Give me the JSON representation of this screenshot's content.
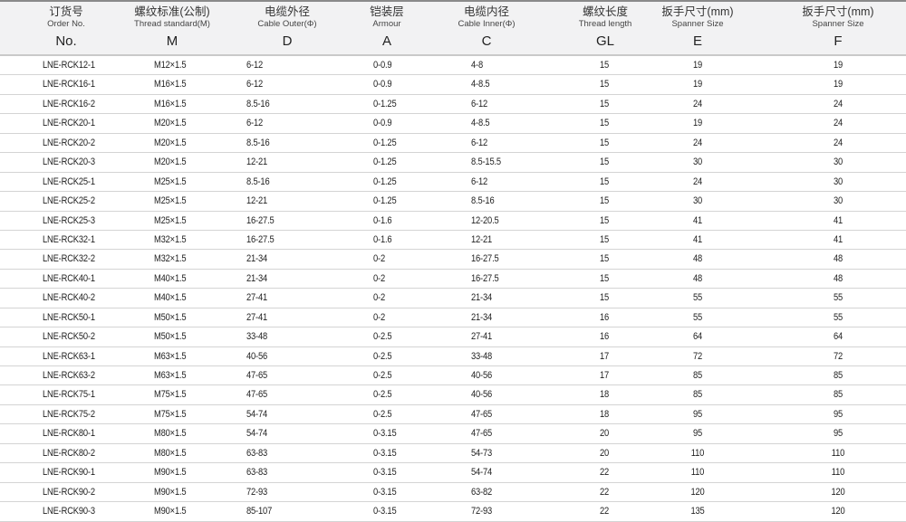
{
  "headers": [
    {
      "cn": "订货号",
      "en": "Order No.",
      "sym": "No."
    },
    {
      "cn": "螺纹标准(公制)",
      "en": "Thread standard(M)",
      "sym": "M"
    },
    {
      "cn": "电缆外径",
      "en": "Cable Outer(Φ)",
      "sym": "D"
    },
    {
      "cn": "铠装层",
      "en": "Armour",
      "sym": "A"
    },
    {
      "cn": "电缆内径",
      "en": "Cable Inner(Φ)",
      "sym": "C"
    },
    {
      "cn": "螺纹长度",
      "en": "Thread length",
      "sym": "GL"
    },
    {
      "cn": "扳手尺寸(mm)",
      "en": "Spanner Size",
      "sym": "E"
    },
    {
      "cn": "扳手尺寸(mm)",
      "en": "Spanner Size",
      "sym": "F"
    }
  ],
  "rows": [
    [
      "LNE-RCK12-1",
      "M12×1.5",
      "6-12",
      "0-0.9",
      "4-8",
      "15",
      "19",
      "19"
    ],
    [
      "LNE-RCK16-1",
      "M16×1.5",
      "6-12",
      "0-0.9",
      "4-8.5",
      "15",
      "19",
      "19"
    ],
    [
      "LNE-RCK16-2",
      "M16×1.5",
      "8.5-16",
      "0-1.25",
      "6-12",
      "15",
      "24",
      "24"
    ],
    [
      "LNE-RCK20-1",
      "M20×1.5",
      "6-12",
      "0-0.9",
      "4-8.5",
      "15",
      "19",
      "24"
    ],
    [
      "LNE-RCK20-2",
      "M20×1.5",
      "8.5-16",
      "0-1.25",
      "6-12",
      "15",
      "24",
      "24"
    ],
    [
      "LNE-RCK20-3",
      "M20×1.5",
      "12-21",
      "0-1.25",
      "8.5-15.5",
      "15",
      "30",
      "30"
    ],
    [
      "LNE-RCK25-1",
      "M25×1.5",
      "8.5-16",
      "0-1.25",
      "6-12",
      "15",
      "24",
      "30"
    ],
    [
      "LNE-RCK25-2",
      "M25×1.5",
      "12-21",
      "0-1.25",
      "8.5-16",
      "15",
      "30",
      "30"
    ],
    [
      "LNE-RCK25-3",
      "M25×1.5",
      "16-27.5",
      "0-1.6",
      "12-20.5",
      "15",
      "41",
      "41"
    ],
    [
      "LNE-RCK32-1",
      "M32×1.5",
      "16-27.5",
      "0-1.6",
      "12-21",
      "15",
      "41",
      "41"
    ],
    [
      "LNE-RCK32-2",
      "M32×1.5",
      "21-34",
      "0-2",
      "16-27.5",
      "15",
      "48",
      "48"
    ],
    [
      "LNE-RCK40-1",
      "M40×1.5",
      "21-34",
      "0-2",
      "16-27.5",
      "15",
      "48",
      "48"
    ],
    [
      "LNE-RCK40-2",
      "M40×1.5",
      "27-41",
      "0-2",
      "21-34",
      "15",
      "55",
      "55"
    ],
    [
      "LNE-RCK50-1",
      "M50×1.5",
      "27-41",
      "0-2",
      "21-34",
      "16",
      "55",
      "55"
    ],
    [
      "LNE-RCK50-2",
      "M50×1.5",
      "33-48",
      "0-2.5",
      "27-41",
      "16",
      "64",
      "64"
    ],
    [
      "LNE-RCK63-1",
      "M63×1.5",
      "40-56",
      "0-2.5",
      "33-48",
      "17",
      "72",
      "72"
    ],
    [
      "LNE-RCK63-2",
      "M63×1.5",
      "47-65",
      "0-2.5",
      "40-56",
      "17",
      "85",
      "85"
    ],
    [
      "LNE-RCK75-1",
      "M75×1.5",
      "47-65",
      "0-2.5",
      "40-56",
      "18",
      "85",
      "85"
    ],
    [
      "LNE-RCK75-2",
      "M75×1.5",
      "54-74",
      "0-2.5",
      "47-65",
      "18",
      "95",
      "95"
    ],
    [
      "LNE-RCK80-1",
      "M80×1.5",
      "54-74",
      "0-3.15",
      "47-65",
      "20",
      "95",
      "95"
    ],
    [
      "LNE-RCK80-2",
      "M80×1.5",
      "63-83",
      "0-3.15",
      "54-73",
      "20",
      "110",
      "110"
    ],
    [
      "LNE-RCK90-1",
      "M90×1.5",
      "63-83",
      "0-3.15",
      "54-74",
      "22",
      "110",
      "110"
    ],
    [
      "LNE-RCK90-2",
      "M90×1.5",
      "72-93",
      "0-3.15",
      "63-82",
      "22",
      "120",
      "120"
    ],
    [
      "LNE-RCK90-3",
      "M90×1.5",
      "85-107",
      "0-3.15",
      "72-93",
      "22",
      "135",
      "120"
    ]
  ]
}
